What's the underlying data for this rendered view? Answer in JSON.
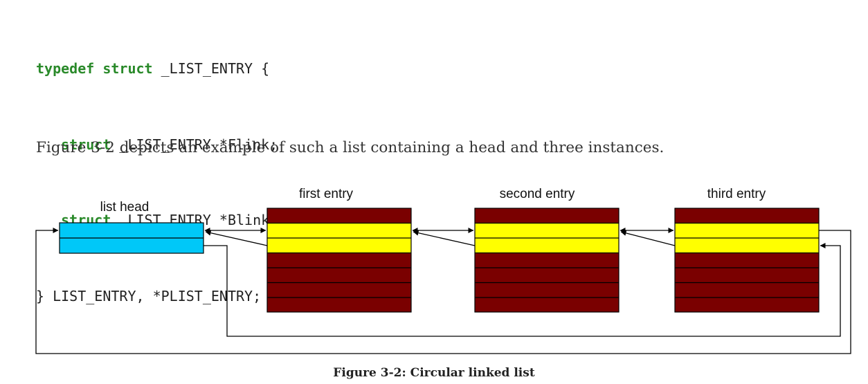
{
  "code": {
    "line1": {
      "kw": "typedef struct",
      "rest": " _LIST_ENTRY {"
    },
    "line2": {
      "indent": "   ",
      "kw": "struct",
      "rest": " _LIST_ENTRY *Flink;"
    },
    "line3": {
      "indent": "   ",
      "kw": "struct",
      "rest": " _LIST_ENTRY *Blink;"
    },
    "line4": {
      "rest": "} LIST_ENTRY, *PLIST_ENTRY;"
    }
  },
  "paragraph": "Figure 3-2 depicts an example of such a list containing a head and three instances.",
  "diagram": {
    "head_label": "list head",
    "entries": [
      "first entry",
      "second entry",
      "third entry"
    ],
    "colors": {
      "head": "#00c8f8",
      "entry_body": "#7a0000",
      "entry_link": "#ffff00"
    }
  },
  "caption": "Figure 3-2: Circular linked list"
}
